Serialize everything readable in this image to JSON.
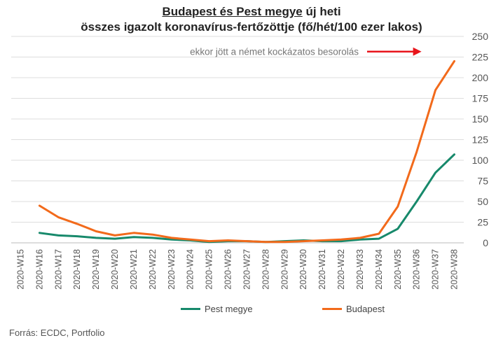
{
  "title": {
    "part1_underlined": "Budapest és Pest megye",
    "part1_rest": " új heti",
    "line2": "összes igazolt koronavírus-fertőzöttje (fő/hét/100 ezer lakos)"
  },
  "source": "Forrás: ECDC, Portfolio",
  "colors": {
    "pest": "#17896b",
    "budapest": "#f26a1b",
    "arrow": "#e8141b",
    "grid": "#dddddd"
  },
  "chart_data": {
    "type": "line",
    "categories": [
      "2020-W15",
      "2020-W16",
      "2020-W17",
      "2020-W18",
      "2020-W19",
      "2020-W20",
      "2020-W21",
      "2020-W22",
      "2020-W23",
      "2020-W24",
      "2020-W25",
      "2020-W26",
      "2020-W27",
      "2020-W28",
      "2020-W29",
      "2020-W30",
      "2020-W31",
      "2020-W32",
      "2020-W33",
      "2020-W34",
      "2020-W35",
      "2020-W36",
      "2020-W37",
      "2020-W38"
    ],
    "series": [
      {
        "name": "Pest megye",
        "color": "#17896b",
        "values": [
          null,
          12,
          9,
          8,
          6,
          5,
          7,
          6,
          4,
          3,
          1,
          2,
          2,
          1,
          2,
          3,
          2,
          2,
          4,
          5,
          17,
          50,
          85,
          107
        ]
      },
      {
        "name": "Budapest",
        "color": "#f26a1b",
        "values": [
          null,
          45,
          31,
          23,
          14,
          9,
          12,
          10,
          6,
          4,
          2,
          3,
          2,
          1,
          1,
          2,
          3,
          4,
          6,
          11,
          44,
          110,
          185,
          220
        ]
      }
    ],
    "ylim": [
      0,
      250
    ],
    "yticks": [
      0,
      25,
      50,
      75,
      100,
      125,
      150,
      175,
      200,
      225,
      250
    ],
    "y_axis_side": "right",
    "grid": true,
    "legend_position": "bottom",
    "annotation": {
      "text": "ekkor jött a német kockázatos besorolás",
      "anchor_x": "2020-W37",
      "anchor_y": 185
    }
  }
}
